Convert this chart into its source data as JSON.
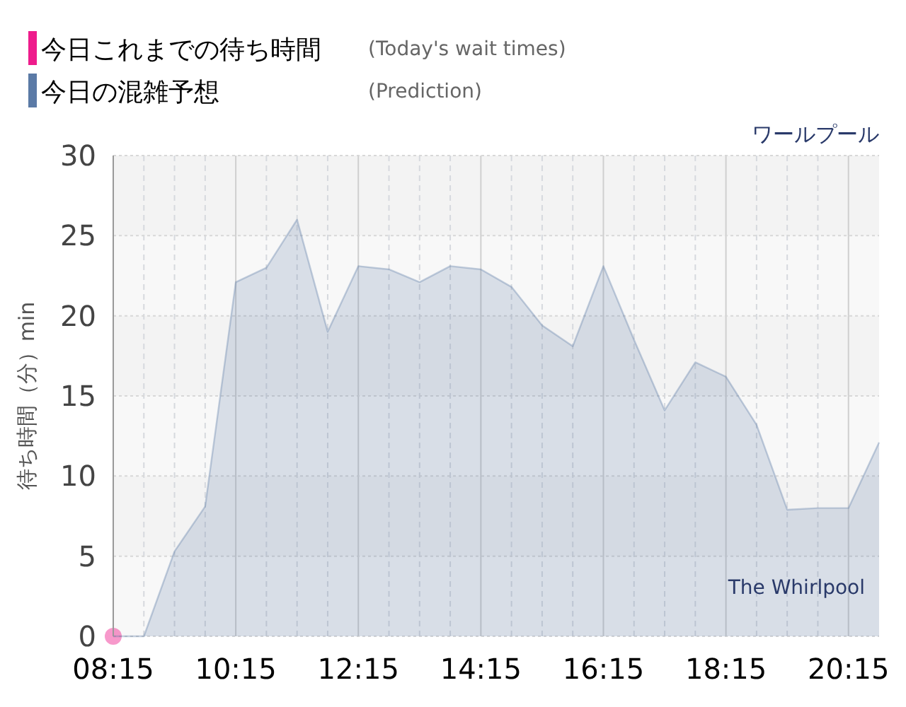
{
  "chart_data": {
    "type": "area",
    "title": "ワールプール",
    "subtitle": "The Whirlpool",
    "ylabel": "待ち時間（分）min",
    "annotations": [
      "(Today's wait times)",
      "(Prediction)"
    ],
    "legend": "top left",
    "grid": true,
    "xlim": [
      8.25,
      20.75
    ],
    "ylim": [
      0,
      30
    ],
    "yticks": [
      0,
      5,
      10,
      15,
      20,
      25,
      30
    ],
    "xticks": [
      {
        "value": 8.25,
        "label": "08:15"
      },
      {
        "value": 8.75,
        "label": null
      },
      {
        "value": 9.25,
        "label": null
      },
      {
        "value": 9.75,
        "label": null
      },
      {
        "value": 10.25,
        "label": "10:15"
      },
      {
        "value": 10.75,
        "label": null
      },
      {
        "value": 11.25,
        "label": null
      },
      {
        "value": 11.75,
        "label": null
      },
      {
        "value": 12.25,
        "label": "12:15"
      },
      {
        "value": 12.75,
        "label": null
      },
      {
        "value": 13.25,
        "label": null
      },
      {
        "value": 13.75,
        "label": null
      },
      {
        "value": 14.25,
        "label": "14:15"
      },
      {
        "value": 14.75,
        "label": null
      },
      {
        "value": 15.25,
        "label": null
      },
      {
        "value": 15.75,
        "label": null
      },
      {
        "value": 16.25,
        "label": "16:15"
      },
      {
        "value": 16.75,
        "label": null
      },
      {
        "value": 17.25,
        "label": null
      },
      {
        "value": 17.75,
        "label": null
      },
      {
        "value": 18.25,
        "label": "18:15"
      },
      {
        "value": 18.75,
        "label": null
      },
      {
        "value": 19.25,
        "label": null
      },
      {
        "value": 19.75,
        "label": null
      },
      {
        "value": 20.25,
        "label": "20:15"
      }
    ],
    "series": [
      {
        "name": "今日これまでの待ち時間",
        "type": "scatter",
        "marker": "circle",
        "color": "#ee1c8c",
        "x": [
          8.25
        ],
        "values": [
          0
        ]
      },
      {
        "name": "今日の混雑予想",
        "color": "#5b7aa6",
        "x": [
          8.25,
          8.75,
          9.25,
          9.75,
          10.25,
          10.75,
          11.25,
          11.75,
          12.25,
          12.75,
          13.25,
          13.75,
          14.25,
          14.75,
          15.25,
          15.75,
          16.25,
          16.75,
          17.25,
          17.75,
          18.25,
          18.75,
          19.25,
          19.75,
          20.25,
          20.75
        ],
        "values": [
          0,
          0,
          5.3,
          8.1,
          22.1,
          23,
          26,
          19,
          23.1,
          22.9,
          22.1,
          23.1,
          22.9,
          21.8,
          19.4,
          18.1,
          23.1,
          18.5,
          14.1,
          17.1,
          16.2,
          13.2,
          7.9,
          8,
          8,
          12.1
        ]
      }
    ]
  }
}
